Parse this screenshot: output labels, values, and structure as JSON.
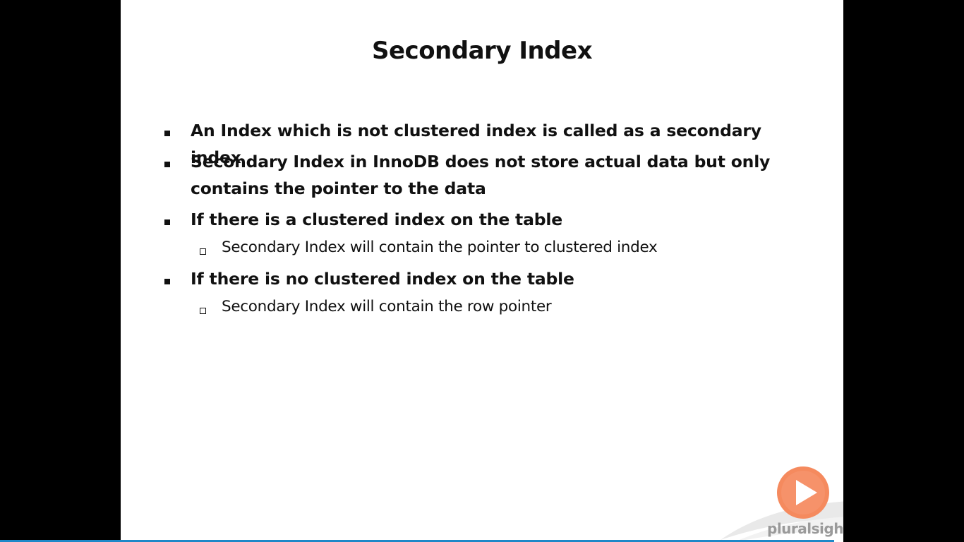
{
  "slide": {
    "title": "Secondary Index",
    "bullets": [
      {
        "text": "An Index which is not clustered index is called as a secondary index"
      },
      {
        "line1": "Secondary Index in InnoDB does not store actual data but only",
        "line2": "contains the pointer to the data"
      },
      {
        "text": "If there is a clustered index on the table",
        "sub": "Secondary Index will contain the pointer to clustered index"
      },
      {
        "text": "If there is no clustered index on the table",
        "sub": "Secondary Index will contain the row pointer"
      }
    ]
  },
  "branding": {
    "logo_text": "pluralsight",
    "play_icon": "play-circle-icon",
    "accent": "#f58a5e"
  },
  "colors": {
    "background": "#000000",
    "slide": "#ffffff",
    "progress": "#1e88c8"
  }
}
